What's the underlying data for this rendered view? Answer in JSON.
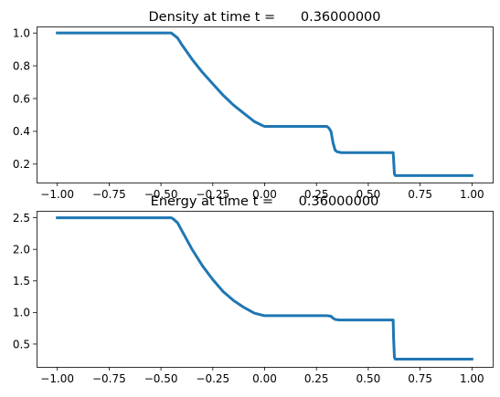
{
  "chart_data": [
    {
      "type": "line",
      "title": "Density at time t =      0.36000000",
      "xlabel": "",
      "ylabel": "",
      "xlim": [
        -1.1,
        1.1
      ],
      "ylim": [
        0.0875,
        1.04
      ],
      "xticks": [
        -1.0,
        -0.75,
        -0.5,
        -0.25,
        0.0,
        0.25,
        0.5,
        0.75,
        1.0
      ],
      "xtick_labels": [
        "−1.00",
        "−0.75",
        "−0.50",
        "−0.25",
        "0.00",
        "0.25",
        "0.50",
        "0.75",
        "1.00"
      ],
      "yticks": [
        0.2,
        0.4,
        0.6,
        0.8,
        1.0
      ],
      "ytick_labels": [
        "0.2",
        "0.4",
        "0.6",
        "0.8",
        "1.0"
      ],
      "grid": false,
      "color": "#1f77b4",
      "series": [
        {
          "x": [
            -1.0,
            -0.6,
            -0.45,
            -0.44,
            -0.42,
            -0.4,
            -0.35,
            -0.3,
            -0.25,
            -0.2,
            -0.15,
            -0.1,
            -0.05,
            -0.01,
            0.0,
            0.1,
            0.2,
            0.3,
            0.31,
            0.32,
            0.33,
            0.34,
            0.35,
            0.37,
            0.45,
            0.55,
            0.62,
            0.622,
            0.626,
            0.63,
            0.8,
            1.0
          ],
          "y": [
            1.0,
            1.0,
            1.0,
            0.99,
            0.97,
            0.93,
            0.84,
            0.76,
            0.69,
            0.62,
            0.56,
            0.51,
            0.46,
            0.435,
            0.43,
            0.43,
            0.43,
            0.43,
            0.42,
            0.4,
            0.33,
            0.285,
            0.275,
            0.27,
            0.27,
            0.27,
            0.27,
            0.23,
            0.14,
            0.13,
            0.13,
            0.13
          ]
        }
      ]
    },
    {
      "type": "line",
      "title": "Energy at time t =      0.36000000",
      "xlabel": "",
      "ylabel": "",
      "xlim": [
        -1.1,
        1.1
      ],
      "ylim": [
        0.138,
        2.61
      ],
      "xticks": [
        -1.0,
        -0.75,
        -0.5,
        -0.25,
        0.0,
        0.25,
        0.5,
        0.75,
        1.0
      ],
      "xtick_labels": [
        "−1.00",
        "−0.75",
        "−0.50",
        "−0.25",
        "0.00",
        "0.25",
        "0.50",
        "0.75",
        "1.00"
      ],
      "yticks": [
        0.5,
        1.0,
        1.5,
        2.0,
        2.5
      ],
      "ytick_labels": [
        "0.5",
        "1.0",
        "1.5",
        "2.0",
        "2.5"
      ],
      "grid": false,
      "color": "#1f77b4",
      "series": [
        {
          "x": [
            -1.0,
            -0.6,
            -0.45,
            -0.44,
            -0.42,
            -0.4,
            -0.35,
            -0.3,
            -0.25,
            -0.2,
            -0.15,
            -0.1,
            -0.05,
            -0.01,
            0.0,
            0.1,
            0.2,
            0.3,
            0.32,
            0.33,
            0.34,
            0.36,
            0.45,
            0.55,
            0.62,
            0.622,
            0.626,
            0.63,
            0.8,
            1.0
          ],
          "y": [
            2.5,
            2.5,
            2.5,
            2.48,
            2.42,
            2.3,
            2.0,
            1.74,
            1.52,
            1.33,
            1.19,
            1.08,
            0.99,
            0.955,
            0.95,
            0.95,
            0.95,
            0.95,
            0.94,
            0.91,
            0.89,
            0.88,
            0.88,
            0.88,
            0.88,
            0.6,
            0.29,
            0.26,
            0.26,
            0.26
          ]
        }
      ]
    }
  ]
}
